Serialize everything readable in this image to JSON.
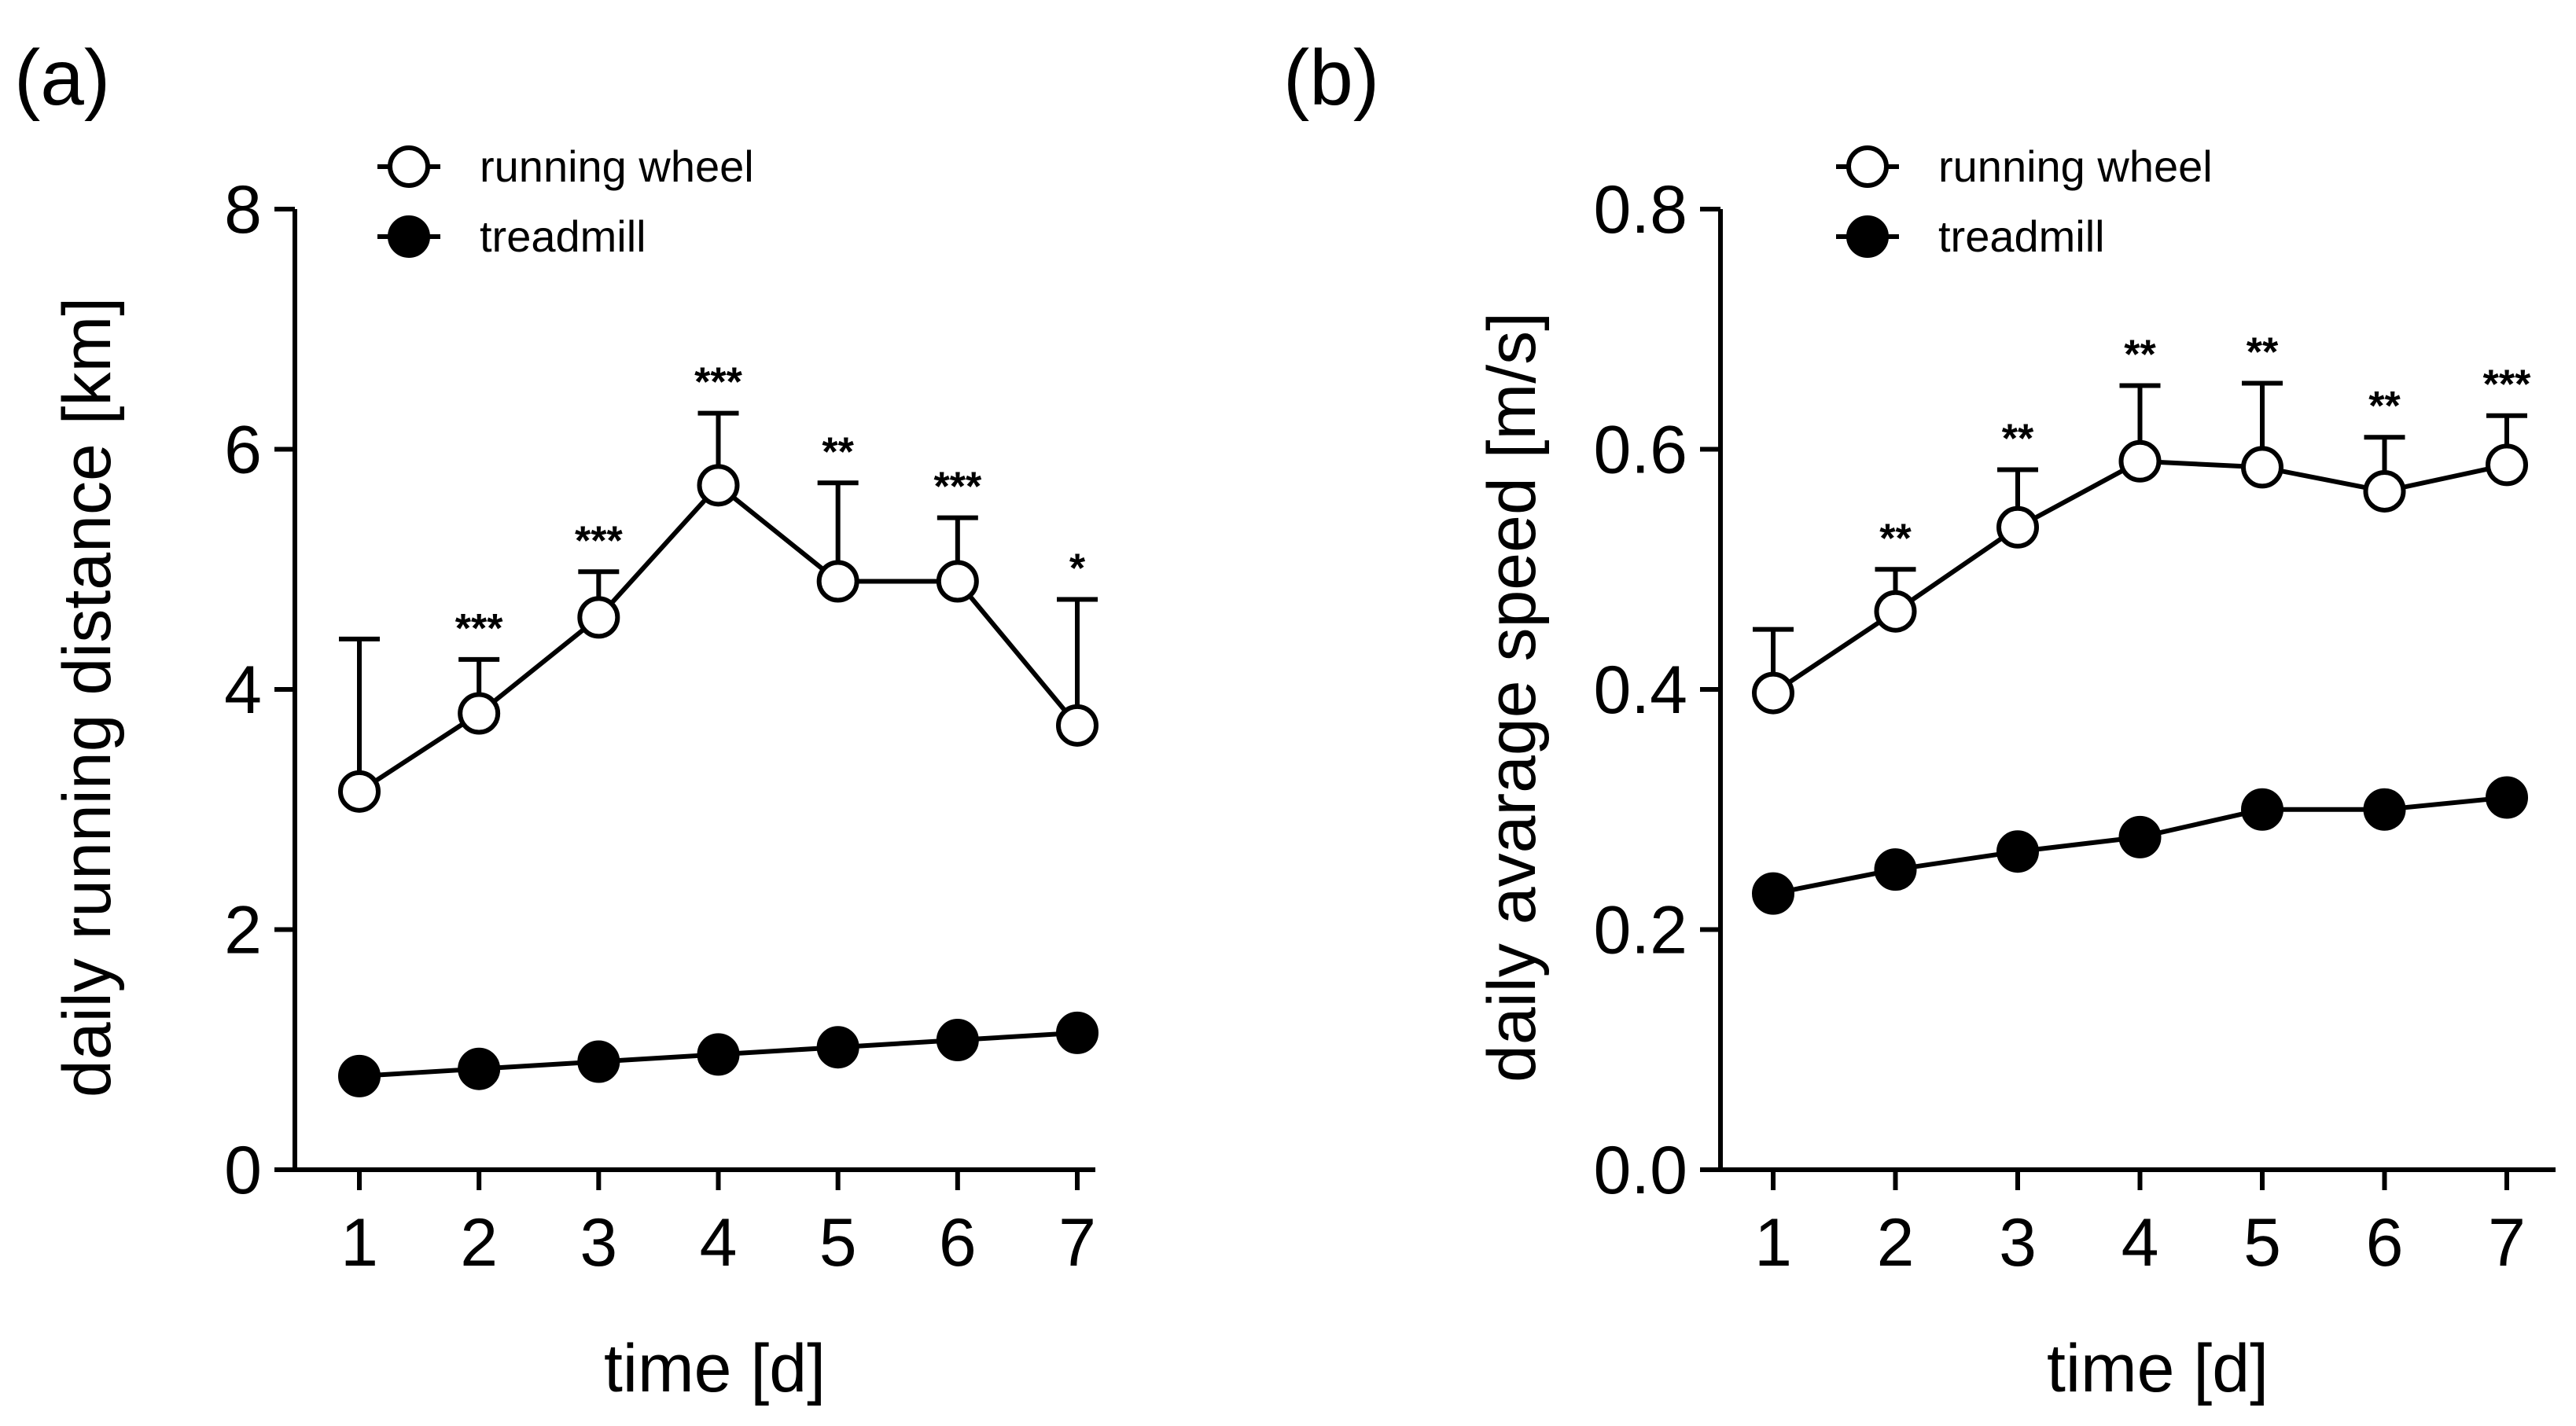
{
  "chart_data": [
    {
      "panel": "(a)",
      "type": "line",
      "xlabel": "time [d]",
      "ylabel": "daily running distance  [km]",
      "x": [
        1,
        2,
        3,
        4,
        5,
        6,
        7
      ],
      "xlim": [
        0.6,
        7.6
      ],
      "ylim": [
        0,
        8
      ],
      "yticks": [
        "0",
        "2",
        "4",
        "6",
        "8"
      ],
      "xticks": [
        "1",
        "2",
        "3",
        "4",
        "5",
        "6",
        "7"
      ],
      "grid": false,
      "legend_position": "top-left",
      "series": [
        {
          "name": "running wheel",
          "marker": "open-circle",
          "values": [
            3.15,
            3.8,
            4.6,
            5.7,
            4.9,
            4.9,
            3.7
          ],
          "error_upper": [
            4.42,
            4.25,
            4.98,
            6.3,
            5.72,
            5.43,
            4.75
          ]
        },
        {
          "name": "treadmill",
          "marker": "filled-circle",
          "values": [
            0.78,
            0.84,
            0.9,
            0.96,
            1.02,
            1.08,
            1.14
          ]
        }
      ],
      "annotations": [
        "",
        "***",
        "***",
        "***",
        "**",
        "***",
        "*"
      ]
    },
    {
      "panel": "(b)",
      "type": "line",
      "xlabel": "time [d]",
      "ylabel": "daily avarage speed [m/s]",
      "x": [
        1,
        2,
        3,
        4,
        5,
        6,
        7
      ],
      "xlim": [
        0.6,
        7.6
      ],
      "ylim": [
        0,
        0.8
      ],
      "yticks": [
        "0.0",
        "0.2",
        "0.4",
        "0.6",
        "0.8"
      ],
      "xticks": [
        "1",
        "2",
        "3",
        "4",
        "5",
        "6",
        "7"
      ],
      "grid": false,
      "legend_position": "top-left",
      "series": [
        {
          "name": "running wheel",
          "marker": "open-circle",
          "values": [
            0.397,
            0.465,
            0.535,
            0.59,
            0.585,
            0.565,
            0.587
          ],
          "error_upper": [
            0.45,
            0.5,
            0.583,
            0.653,
            0.655,
            0.61,
            0.628
          ]
        },
        {
          "name": "treadmill",
          "marker": "filled-circle",
          "values": [
            0.23,
            0.25,
            0.265,
            0.277,
            0.3,
            0.3,
            0.31
          ]
        }
      ],
      "annotations": [
        "",
        "**",
        "**",
        "**",
        "**",
        "**",
        "***"
      ]
    }
  ]
}
